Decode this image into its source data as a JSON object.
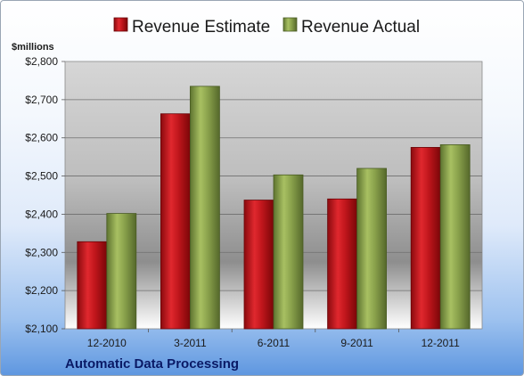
{
  "chart_data": {
    "type": "bar",
    "ylabel": "$millions",
    "categories": [
      "12-2010",
      "3-2011",
      "6-2011",
      "9-2011",
      "12-2011"
    ],
    "series": [
      {
        "name": "Revenue Estimate",
        "color": "#c0161c",
        "values": [
          2328,
          2663,
          2437,
          2440,
          2575
        ]
      },
      {
        "name": "Revenue Actual",
        "color": "#8aa24c",
        "values": [
          2402,
          2735,
          2503,
          2520,
          2582
        ]
      }
    ],
    "ylim": [
      2100,
      2800
    ],
    "yticks": [
      "$2,100",
      "$2,200",
      "$2,300",
      "$2,400",
      "$2,500",
      "$2,600",
      "$2,700",
      "$2,800"
    ],
    "ytick_values": [
      2100,
      2200,
      2300,
      2400,
      2500,
      2600,
      2700,
      2800
    ],
    "grid": true,
    "legend_position": "top"
  },
  "company": "Automatic Data Processing"
}
